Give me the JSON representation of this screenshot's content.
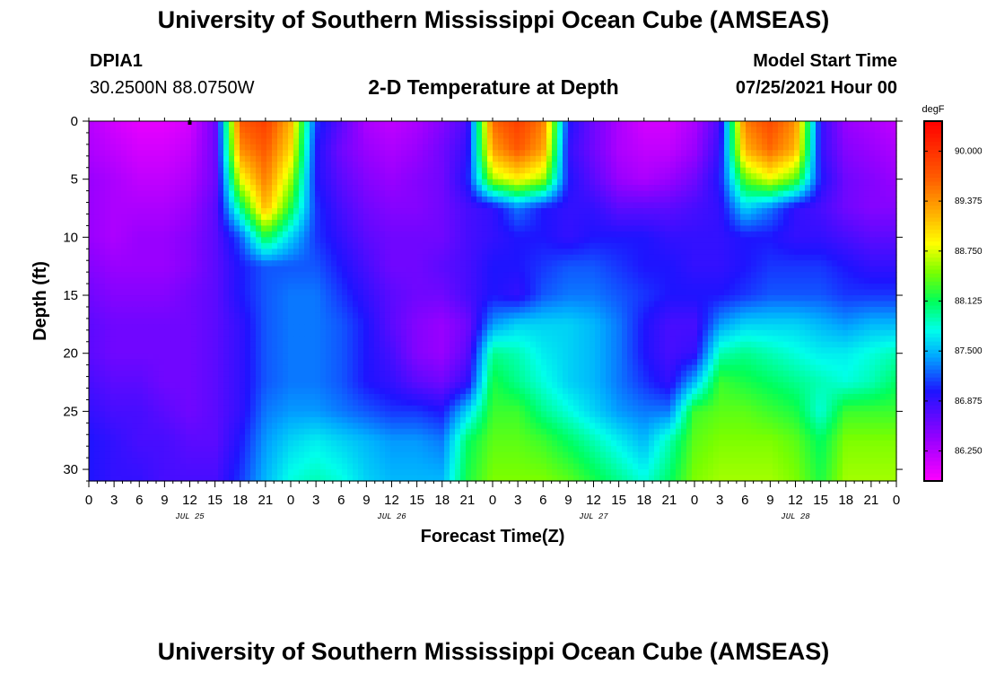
{
  "header": {
    "title": "University of Southern Mississippi Ocean Cube (AMSEAS)",
    "station_id": "DPIA1",
    "location": "30.2500N  88.0750W",
    "plot_title": "2-D Temperature at Depth",
    "model_start_label": "Model Start Time",
    "model_start_value": "07/25/2021 Hour 00"
  },
  "footer": {
    "title": "University of Southern Mississippi Ocean Cube (AMSEAS)"
  },
  "chart_data": {
    "type": "heatmap",
    "title": "2-D Temperature at Depth",
    "xlabel": "Forecast Time(Z)",
    "ylabel": "Depth (ft)",
    "xlim": [
      0,
      96
    ],
    "ylim": [
      31,
      0
    ],
    "x_ticks": [
      0,
      3,
      6,
      9,
      12,
      15,
      18,
      21,
      24,
      27,
      30,
      33,
      36,
      39,
      42,
      45,
      48,
      51,
      54,
      57,
      60,
      63,
      66,
      69,
      72,
      75,
      78,
      81,
      84,
      87,
      90,
      93,
      96
    ],
    "x_tick_labels": [
      "0",
      "3",
      "6",
      "9",
      "12",
      "15",
      "18",
      "21",
      "0",
      "3",
      "6",
      "9",
      "12",
      "15",
      "18",
      "21",
      "0",
      "3",
      "6",
      "9",
      "12",
      "15",
      "18",
      "21",
      "0",
      "3",
      "6",
      "9",
      "12",
      "15",
      "18",
      "21",
      "0"
    ],
    "date_labels": [
      {
        "x": 12,
        "label": "JUL 25"
      },
      {
        "x": 36,
        "label": "JUL 26"
      },
      {
        "x": 60,
        "label": "JUL 27"
      },
      {
        "x": 84,
        "label": "JUL 28"
      }
    ],
    "y_ticks": [
      0,
      5,
      10,
      15,
      20,
      25,
      30
    ],
    "y_tick_labels": [
      "0",
      "5",
      "10",
      "15",
      "20",
      "25",
      "30"
    ],
    "colorbar": {
      "unit": "degF",
      "min": 85.875,
      "max": 90.375,
      "tick_values": [
        90.0,
        89.375,
        88.75,
        88.125,
        87.5,
        86.875,
        86.25
      ],
      "tick_labels": [
        "90.000",
        "89.375",
        "88.750",
        "88.125",
        "87.500",
        "86.875",
        "86.250"
      ]
    },
    "depth_levels_ft": [
      0,
      2.5,
      5,
      7.5,
      10,
      12.5,
      15,
      17.5,
      20,
      22.5,
      25,
      27.5,
      31
    ],
    "time_hours": [
      0,
      3,
      6,
      9,
      12,
      15,
      18,
      21,
      24,
      27,
      30,
      33,
      36,
      39,
      42,
      45,
      48,
      51,
      54,
      57,
      60,
      63,
      66,
      69,
      72,
      75,
      78,
      81,
      84,
      87,
      90,
      93,
      96
    ],
    "temperature_degF": [
      [
        86.25,
        86.1,
        86.0,
        86.0,
        86.1,
        86.6,
        89.7,
        89.9,
        89.2,
        87.1,
        86.7,
        86.3,
        86.2,
        86.3,
        86.5,
        86.8,
        89.6,
        89.9,
        89.5,
        87.0,
        86.6,
        86.3,
        86.1,
        86.1,
        86.3,
        86.8,
        89.5,
        89.8,
        89.4,
        86.9,
        86.4,
        86.3,
        86.2
      ],
      [
        86.3,
        86.2,
        86.1,
        86.1,
        86.2,
        86.6,
        89.4,
        89.7,
        89.0,
        87.0,
        86.6,
        86.4,
        86.3,
        86.4,
        86.6,
        86.9,
        89.3,
        89.7,
        89.3,
        86.9,
        86.6,
        86.3,
        86.2,
        86.2,
        86.4,
        86.9,
        89.2,
        89.6,
        89.2,
        86.9,
        86.5,
        86.4,
        86.3
      ],
      [
        86.4,
        86.3,
        86.2,
        86.2,
        86.3,
        86.6,
        88.8,
        89.5,
        88.6,
        87.0,
        86.7,
        86.5,
        86.4,
        86.5,
        86.6,
        87.0,
        88.6,
        88.9,
        88.6,
        87.0,
        86.7,
        86.4,
        86.3,
        86.4,
        86.6,
        87.0,
        88.4,
        88.8,
        88.4,
        87.0,
        86.6,
        86.5,
        86.4
      ],
      [
        86.4,
        86.3,
        86.3,
        86.3,
        86.4,
        86.7,
        88.0,
        89.2,
        88.2,
        87.1,
        86.8,
        86.6,
        86.5,
        86.5,
        86.6,
        86.8,
        86.9,
        87.3,
        87.0,
        86.9,
        86.9,
        86.7,
        86.7,
        86.7,
        86.8,
        86.9,
        87.6,
        87.3,
        86.9,
        86.8,
        86.6,
        86.5,
        86.5
      ],
      [
        86.4,
        86.3,
        86.4,
        86.4,
        86.5,
        86.7,
        87.2,
        88.2,
        87.6,
        87.1,
        86.9,
        86.7,
        86.6,
        86.6,
        86.6,
        86.8,
        86.9,
        87.0,
        87.0,
        86.9,
        87.0,
        87.0,
        87.0,
        86.9,
        86.9,
        86.9,
        87.0,
        87.0,
        86.9,
        86.9,
        86.8,
        86.7,
        86.7
      ],
      [
        86.5,
        86.4,
        86.4,
        86.4,
        86.5,
        86.7,
        87.0,
        87.2,
        87.2,
        87.2,
        87.0,
        86.8,
        86.6,
        86.6,
        86.7,
        86.8,
        87.0,
        87.0,
        87.1,
        87.2,
        87.2,
        87.1,
        87.0,
        87.0,
        86.9,
        86.9,
        87.0,
        87.1,
        87.1,
        87.1,
        87.0,
        86.9,
        86.9
      ],
      [
        86.6,
        86.5,
        86.5,
        86.5,
        86.6,
        86.7,
        87.0,
        87.2,
        87.3,
        87.3,
        87.1,
        86.9,
        86.7,
        86.6,
        86.6,
        86.8,
        87.0,
        86.9,
        87.2,
        87.3,
        87.3,
        87.2,
        87.1,
        87.0,
        87.0,
        87.0,
        87.1,
        87.2,
        87.2,
        87.2,
        87.1,
        87.1,
        87.1
      ],
      [
        86.7,
        86.6,
        86.6,
        86.6,
        86.6,
        86.7,
        86.9,
        87.2,
        87.3,
        87.3,
        87.2,
        87.0,
        86.7,
        86.5,
        86.4,
        86.6,
        87.4,
        87.6,
        87.6,
        87.6,
        87.5,
        87.3,
        87.0,
        86.8,
        86.8,
        87.4,
        87.6,
        87.6,
        87.6,
        87.5,
        87.4,
        87.5,
        87.5
      ],
      [
        86.7,
        86.6,
        86.6,
        86.6,
        86.6,
        86.7,
        86.9,
        87.2,
        87.3,
        87.3,
        87.2,
        87.0,
        86.8,
        86.5,
        86.4,
        86.7,
        88.0,
        87.9,
        87.7,
        87.6,
        87.5,
        87.3,
        87.0,
        86.8,
        86.9,
        87.9,
        88.0,
        87.9,
        87.8,
        87.7,
        87.7,
        87.8,
        87.9
      ],
      [
        86.8,
        86.7,
        86.7,
        86.6,
        86.6,
        86.7,
        86.9,
        87.2,
        87.3,
        87.3,
        87.2,
        87.0,
        86.9,
        86.7,
        86.6,
        86.9,
        88.2,
        88.0,
        87.8,
        87.6,
        87.5,
        87.3,
        87.1,
        86.9,
        87.5,
        88.3,
        88.2,
        88.1,
        88.0,
        87.9,
        87.8,
        87.9,
        88.1
      ],
      [
        86.9,
        86.8,
        86.8,
        86.7,
        86.6,
        86.7,
        86.9,
        87.3,
        87.4,
        87.4,
        87.3,
        87.2,
        87.1,
        87.1,
        87.0,
        87.6,
        88.3,
        88.3,
        88.0,
        87.8,
        87.6,
        87.4,
        87.3,
        87.3,
        88.3,
        88.4,
        88.4,
        88.3,
        88.2,
        87.8,
        88.3,
        88.3,
        88.3
      ],
      [
        87.0,
        86.9,
        86.8,
        86.8,
        86.7,
        86.7,
        87.0,
        87.4,
        87.6,
        87.7,
        87.6,
        87.5,
        87.4,
        87.4,
        87.3,
        88.1,
        88.4,
        88.4,
        88.3,
        88.1,
        87.9,
        87.7,
        87.5,
        87.9,
        88.4,
        88.5,
        88.5,
        88.5,
        88.4,
        88.1,
        88.5,
        88.5,
        88.5
      ],
      [
        87.0,
        86.9,
        86.9,
        86.8,
        86.8,
        86.8,
        87.1,
        87.5,
        87.8,
        87.9,
        87.8,
        87.6,
        87.5,
        87.5,
        87.5,
        88.2,
        88.5,
        88.5,
        88.5,
        88.4,
        88.2,
        88.0,
        87.8,
        88.1,
        88.5,
        88.6,
        88.6,
        88.6,
        88.5,
        88.2,
        88.6,
        88.6,
        88.6
      ]
    ]
  }
}
